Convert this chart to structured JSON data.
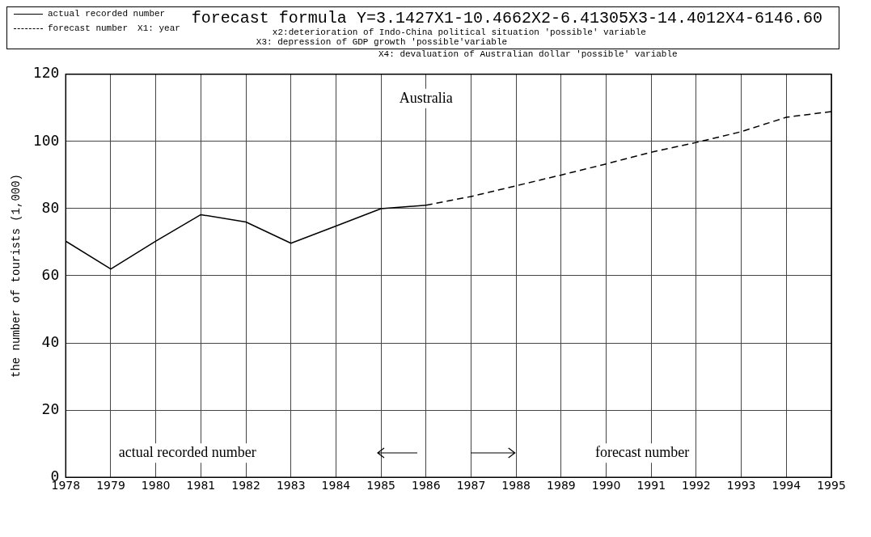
{
  "chart_data": {
    "type": "line",
    "title": "Australia",
    "ylabel": "the number of tourists (1,000)",
    "legend": "top",
    "annotations": [
      "forecast formula Y=3.1427X1-10.4662X2-6.41305X3-14.4012X4-6146.60",
      "X1: year",
      "x2:deterioration of Indo-China political situation 'possible' variable",
      "X3: depression of GDP growth 'possible'variable",
      "X4: devaluation of Australian dollar 'possible' variable",
      "actual recorded number",
      "forecast number"
    ],
    "series": [
      {
        "name": "actual recorded number",
        "color": "#000000",
        "line_style": "solid",
        "x": [
          1978,
          1979,
          1980,
          1981,
          1982,
          1983,
          1984,
          1985,
          1986
        ],
        "values": [
          70.3,
          62,
          70.3,
          78.2,
          76,
          69.7,
          74.8,
          80,
          81
        ]
      },
      {
        "name": "forecast number",
        "color": "#000000",
        "line_style": "dashed",
        "x": [
          1986,
          1987,
          1988,
          1989,
          1990,
          1991,
          1992,
          1993,
          1994,
          1995
        ],
        "values": [
          81,
          83.6,
          86.8,
          90,
          93.3,
          96.8,
          99.7,
          102.9,
          107.2,
          108.9
        ]
      }
    ],
    "xlim": [
      1978,
      1995
    ],
    "xticks": [
      1978,
      1979,
      1980,
      1981,
      1982,
      1983,
      1984,
      1985,
      1986,
      1987,
      1988,
      1989,
      1990,
      1991,
      1992,
      1993,
      1994,
      1995
    ],
    "ylim": [
      0,
      120
    ],
    "yticks": [
      0,
      20,
      40,
      60,
      80,
      100,
      120
    ],
    "grid": true,
    "marker": "none"
  }
}
